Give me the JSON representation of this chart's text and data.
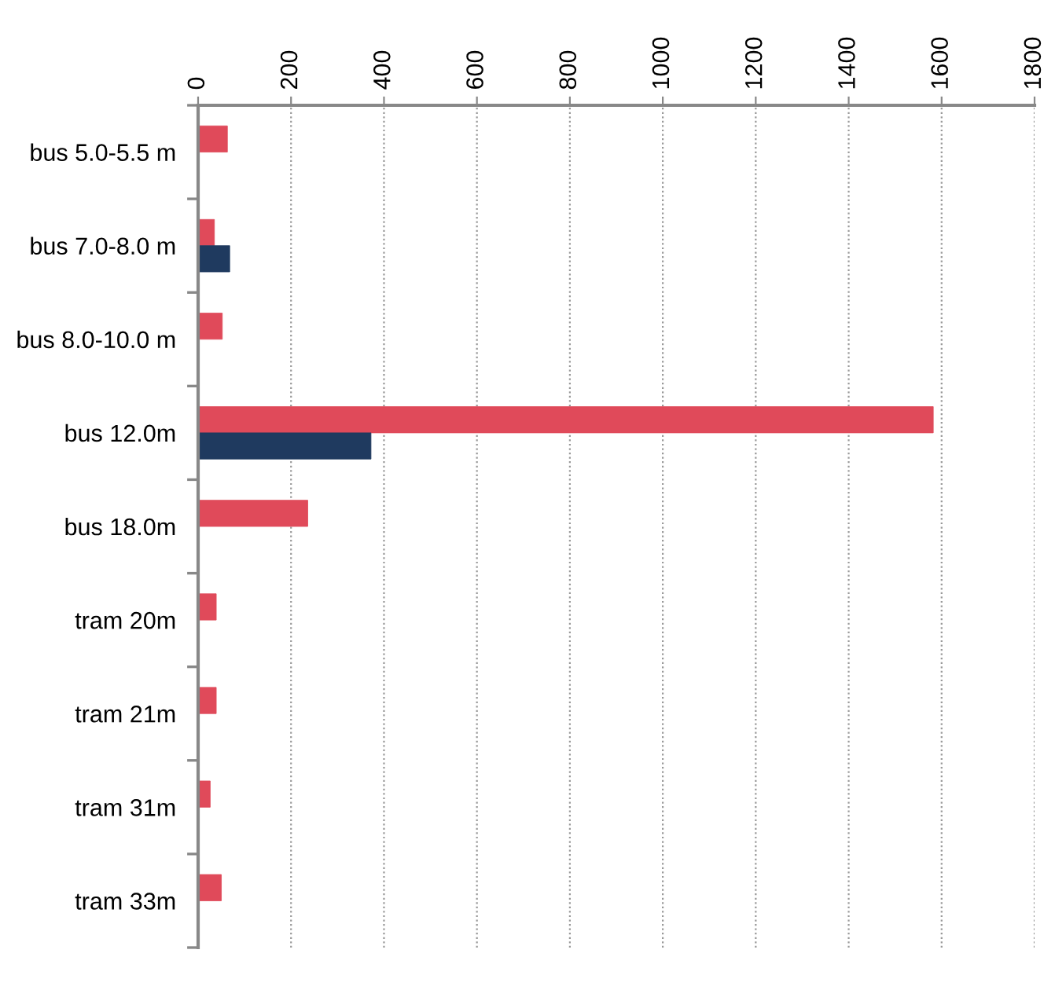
{
  "chart_data": {
    "type": "bar",
    "orientation": "horizontal",
    "categories": [
      "bus 5.0-5.5 m",
      "bus 7.0-8.0 m",
      "bus 8.0-10.0 m",
      "bus 12.0m",
      "bus 18.0m",
      "tram 20m",
      "tram 21m",
      "tram 31m",
      "tram 33m"
    ],
    "series": [
      {
        "color": "#e04a5a",
        "values": [
          63,
          35,
          52,
          1582,
          236,
          39,
          39,
          26,
          50
        ]
      },
      {
        "color": "#1f3a5f",
        "values": [
          null,
          68,
          null,
          372,
          null,
          null,
          null,
          null,
          null
        ]
      }
    ],
    "xlim": [
      0,
      1800
    ],
    "xticks": [
      0,
      200,
      400,
      600,
      800,
      1000,
      1200,
      1400,
      1600,
      1800
    ],
    "grid": "x"
  }
}
